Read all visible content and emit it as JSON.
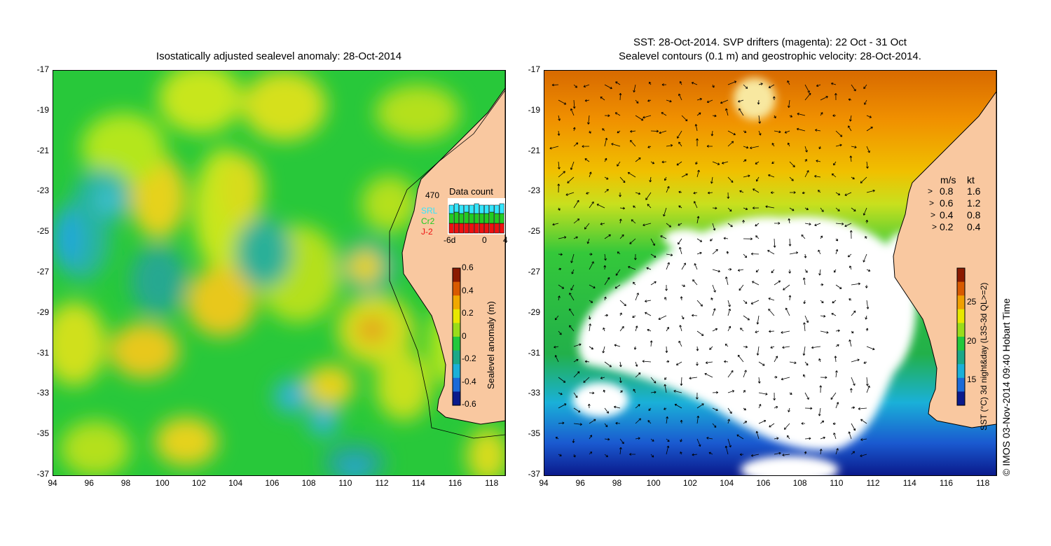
{
  "left_panel": {
    "title": "Isostatically adjusted sealevel anomaly: 28-Oct-2014",
    "y_ticks": [
      "-17",
      "-19",
      "-21",
      "-23",
      "-25",
      "-27",
      "-29",
      "-31",
      "-33",
      "-35",
      "-37"
    ],
    "x_ticks": [
      "94",
      "96",
      "98",
      "100",
      "102",
      "104",
      "106",
      "108",
      "110",
      "112",
      "114",
      "116",
      "118"
    ],
    "data_count": {
      "title": "Data count",
      "max_label": "470",
      "legend": [
        {
          "name": "SRL",
          "color": "#33e6ff"
        },
        {
          "name": "Cr2",
          "color": "#22cc22"
        },
        {
          "name": "J-2",
          "color": "#ee1111"
        }
      ],
      "x_labels": [
        "-6d",
        "0",
        "4"
      ]
    },
    "colorbar": {
      "label": "Sealevel anomaly (m)",
      "ticks": [
        "0.6",
        "0.4",
        "0.2",
        "0",
        "-0.2",
        "-0.4",
        "-0.6"
      ],
      "colors": [
        "#8b1a00",
        "#d85a00",
        "#f0a800",
        "#e8e800",
        "#9adc1a",
        "#22c83c",
        "#1aa888",
        "#1ab0d8",
        "#1a6ad8",
        "#0a1a8c"
      ]
    }
  },
  "right_panel": {
    "title_line1": "SST: 28-Oct-2014. SVP drifters (magenta): 22 Oct - 31 Oct",
    "title_line2": "Sealevel contours (0.1 m) and geostrophic velocity: 28-Oct-2014.",
    "y_ticks": [
      "-17",
      "-19",
      "-21",
      "-23",
      "-25",
      "-27",
      "-29",
      "-31",
      "-33",
      "-35",
      "-37"
    ],
    "x_ticks": [
      "94",
      "96",
      "98",
      "100",
      "102",
      "104",
      "106",
      "108",
      "110",
      "112",
      "114",
      "116",
      "118"
    ],
    "velocity_legend": {
      "header_ms": "m/s",
      "header_kt": "kt",
      "rows": [
        {
          "ms": "0.8",
          "kt": "1.6"
        },
        {
          "ms": "0.6",
          "kt": "1.2"
        },
        {
          "ms": "0.4",
          "kt": "0.8"
        },
        {
          "ms": "0.2",
          "kt": "0.4"
        }
      ]
    },
    "colorbar": {
      "label": "SST (°C) 3d night&day (L3S-3d QL>=2)",
      "ticks": [
        "25",
        "20",
        "15"
      ],
      "colors": [
        "#8b1a00",
        "#d85a00",
        "#f0a000",
        "#e8e800",
        "#9adc1a",
        "#22c83c",
        "#1aa888",
        "#1ab0d8",
        "#1a6ad8",
        "#0a1a8c"
      ]
    }
  },
  "credit": "© IMOS 03-Nov-2014 09:40 Hobart Time",
  "colors": {
    "land": "#f9c8a0",
    "sla_base": "#22cc33",
    "sst_warm": "#e88a00",
    "cloud": "#ffffff"
  }
}
